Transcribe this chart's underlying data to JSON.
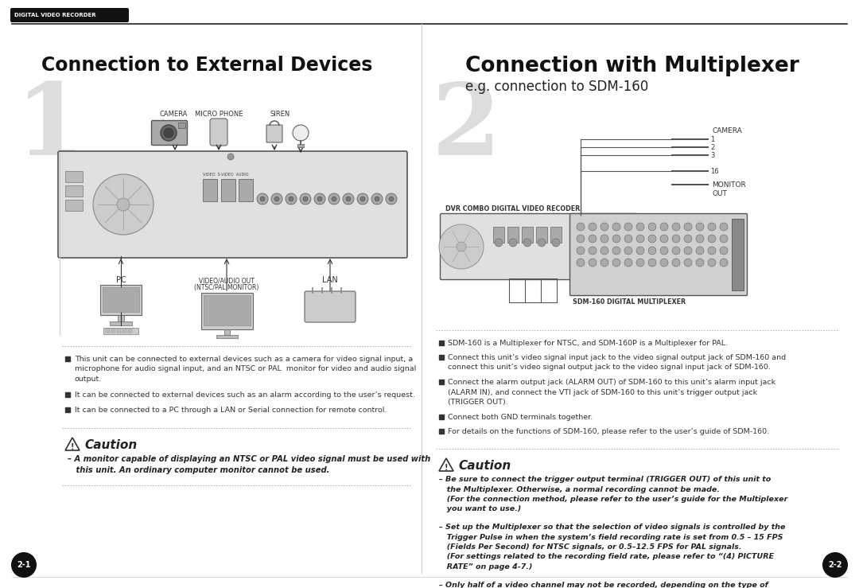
{
  "bg_color": "#ffffff",
  "header_bar_color": "#111111",
  "header_text": "DIGITAL VIDEO RECORDER",
  "header_text_color": "#ffffff",
  "section1_number": "1",
  "section1_title": "Connection to External Devices",
  "section2_number": "2",
  "section2_title": "Connection with Multiplexer",
  "section2_subtitle": "e.g. connection to SDM-160",
  "bullets_left": [
    "This unit can be connected to external devices such as a camera for video signal input, a\nmicrophone for audio signal input, and an NTSC or PAL  monitor for video and audio signal\noutput.",
    "It can be connected to external devices such as an alarm according to the user’s request.",
    "It can be connected to a PC through a LAN or Serial connection for remote control."
  ],
  "caution_title_left": "Caution",
  "caution_text_left": "– A monitor capable of displaying an NTSC or PAL video signal must be used with\n   this unit. An ordinary computer monitor cannot be used.",
  "bullets_right": [
    "SDM-160 is a Multiplexer for NTSC, and SDM-160P is a Multiplexer for PAL.",
    "Connect this unit’s video signal input jack to the video signal output jack of SDM-160 and\nconnect this unit’s video signal output jack to the video signal input jack of SDM-160.",
    "Connect the alarm output jack (ALARM OUT) of SDM-160 to this unit’s alarm input jack\n(ALARM IN), and connect the VTI jack of SDM-160 to this unit’s trigger output jack\n(TRIGGER OUT).",
    "Connect both GND terminals together.",
    "For details on the functions of SDM-160, please refer to the user’s guide of SDM-160."
  ],
  "caution_title_right": "Caution",
  "caution_items_right": [
    "– Be sure to connect the trigger output terminal (TRIGGER OUT) of this unit to\n   the Multiplexer. Otherwise, a normal recording cannot be made.\n   (For the connection method, please refer to the user’s guide for the Multiplexer\n   you want to use.)",
    "– Set up the Multiplexer so that the selection of video signals is controlled by the\n   Trigger Pulse in when the system’s field recording rate is set from 0.5 – 15 FPS\n   (Fields Per Second) for NTSC signals, or 0.5–12.5 FPS for PAL signals.\n   (For settings related to the recording field rate, please refer to “(4) PICTURE\n   RATE” on page 4-7.)",
    "– Only half of a video channel may not be recorded, depending on the type of\n   multiplexer, when the system’s field recording rate is 30 FPS (for NTSC) or 25\n   FPS (for PAL). In this case, set the output mode of the multiplexer to Frame-\n   Mode or adjust the field recording rate of the DVR to 60 FPS (for NTSC) or 50\n   FPS (for PAL)."
  ],
  "page_left": "2-1",
  "page_right": "2-2",
  "dvr_label": "DVR COMBO DIGITAL VIDEO RECODER",
  "sdm_label": "SDM-160 DIGITAL MULTIPLEXER",
  "cam_label": "CAMERA",
  "monitor_label": "MONITOR\nOUT"
}
